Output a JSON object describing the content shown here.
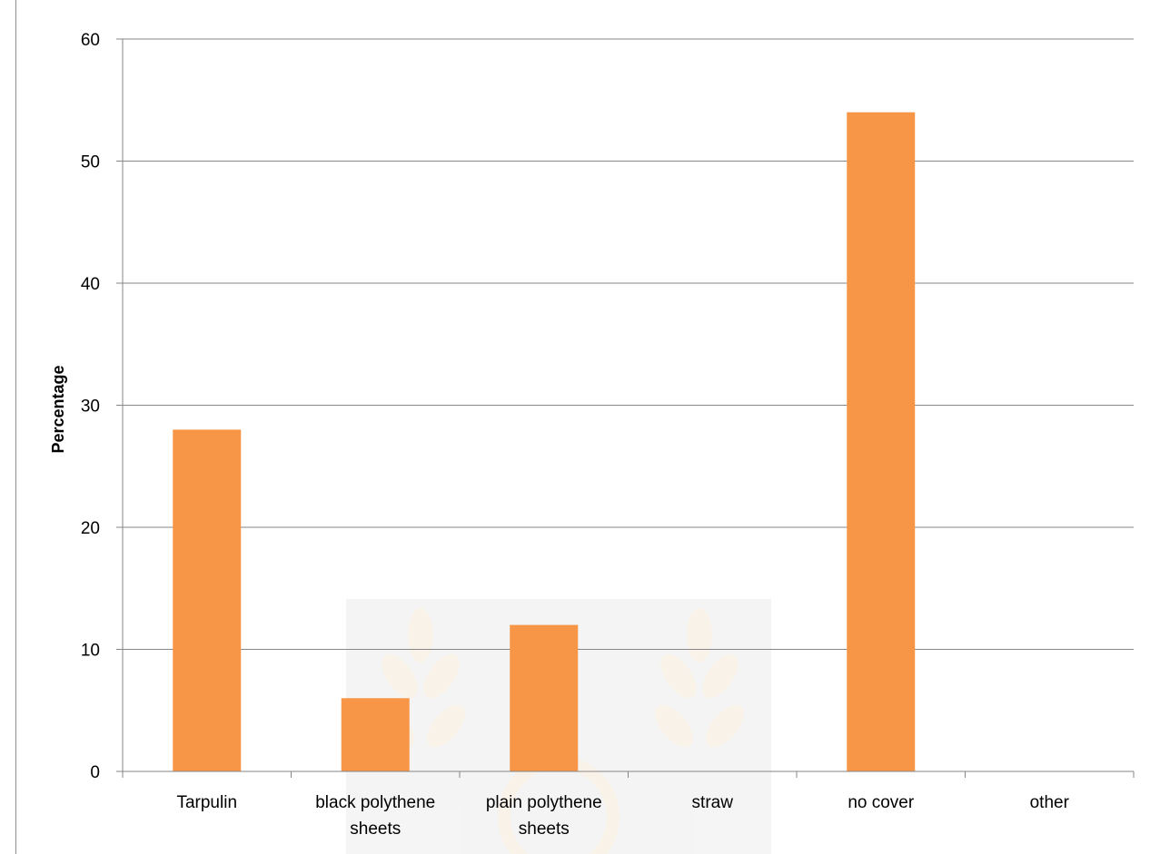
{
  "chart_data": {
    "type": "bar",
    "title": "",
    "xlabel": "",
    "ylabel": "Percentage",
    "categories": [
      [
        "Tarpulin"
      ],
      [
        "black polythene",
        "sheets"
      ],
      [
        "plain polythene",
        "sheets"
      ],
      [
        "straw"
      ],
      [
        "no cover"
      ],
      [
        "other"
      ]
    ],
    "values": [
      28,
      6,
      12,
      0,
      54,
      0
    ],
    "ylim": [
      0,
      60
    ],
    "yticks": [
      0,
      10,
      20,
      30,
      40,
      50,
      60
    ],
    "grid": true,
    "legend": "none",
    "bar_color": "#f79646",
    "grid_color": "#868686",
    "title_color": "#f5a623"
  }
}
